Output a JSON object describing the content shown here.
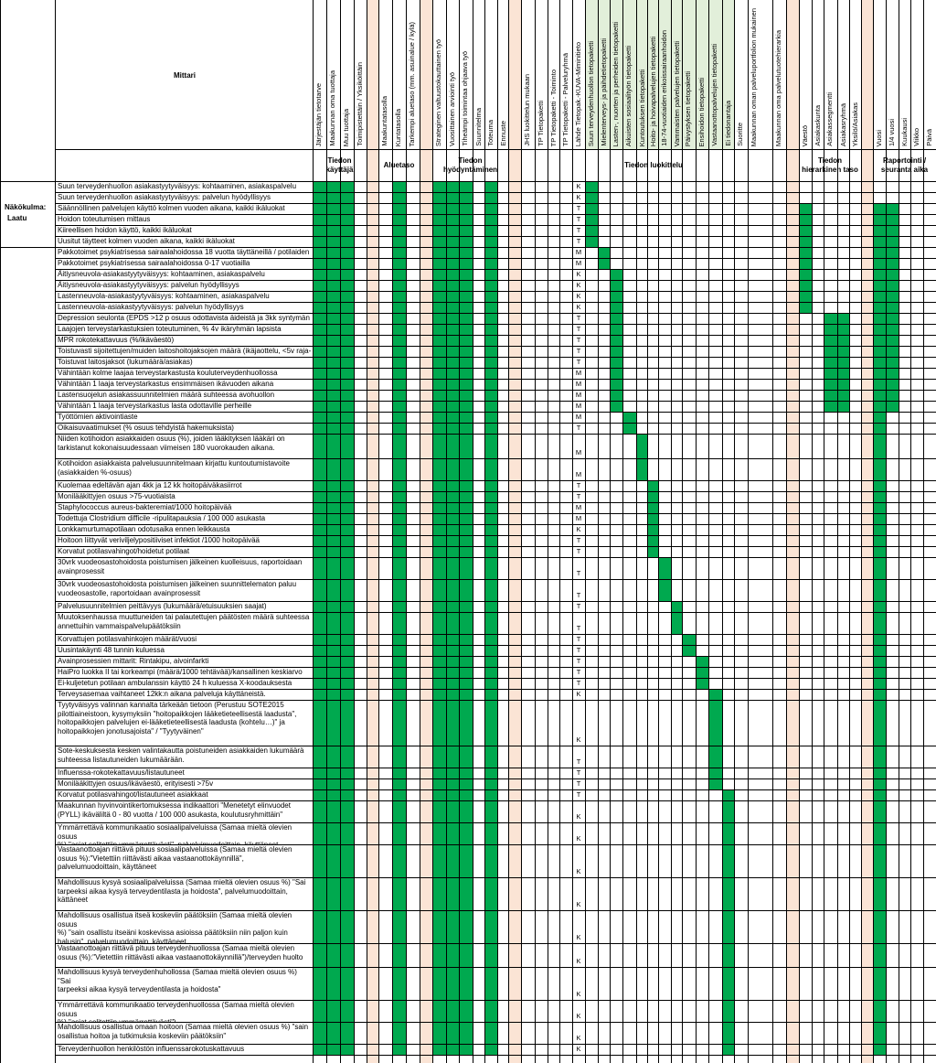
{
  "header": {
    "title": "Mittari",
    "perspective_label": "Näkökulma:",
    "perspective_value": "Laatu"
  },
  "columns": [
    "Järjestäjän tietotarve",
    "Maakunnan oma tuottaja",
    "Muu tuottaja",
    "Toimipistettäin / Yksiköittäin",
    "",
    "Maakuntatasolla",
    "Kuntatasolla",
    "Tarkempi aluetaso (mm. asuinalue / kylä)",
    "",
    "Strateginen valtuustokauttainen työ",
    "Vuosittainen arviointi työ",
    "Tiheämpi toimintaa ohjaava työ",
    "Suunnitelma",
    "Toteuma",
    "Ennuste",
    "",
    "JHS luokittelun mukaan",
    "TP Tietopaketti",
    "TP Tietopaketti - Toiminto",
    "TP Tietopaketti - Palveluryhmä",
    "Lähde Tietopak.-KUVA-Miminitieto",
    "Suun terveydenhuollon tietopaketti",
    "Mielenterveys- ja päihdetietopaketti",
    "Lasten-, nuorten ja perheiden tietopaketti",
    "Aikuisten sosiaalityön tietopaketti",
    "Kuntoutuksen tietopaketti",
    "Hoito- ja hoivapalvelujen tietopaketti",
    "18-74-vuotiaiden erikoissairaanhoidon",
    "Vammaisten palvelujen tietopaketti",
    "Päivystyksen tietopaketti",
    "Ensihoidon tietopaketti",
    "Vastaanottopalvelujen tietopaketti",
    "Ei tiedonantaja",
    "Suoritte",
    "Maakunnan oman palveluportfolion mukainen",
    "Maakunnan oma palvelutuotehierarkia",
    "",
    "Väestö",
    "Asiakaskunta",
    "Asiakassegmentti",
    "Asiakasryhmä",
    "Yksilö/Asiakas",
    "",
    "Vuosi",
    "1/4 vuosi",
    "Kuukausi",
    "Viikko",
    "Päivä"
  ],
  "groups": [
    {
      "label": "Tiedon\nkäyttäjä"
    },
    {
      "label": "Aluetaso"
    },
    {
      "label": "Tiedon\nhyödyntäminen"
    },
    {
      "label": "Tiedon luokittelu"
    },
    {
      "label": "Tiedon\nhierarkinen taso"
    },
    {
      "label": "Raportointi /\nseuranta aika"
    }
  ],
  "rows": [
    {
      "text": "Suun terveydenhuollon asiakastyytyväisyys: kohtaaminen, asiakaspalvelu",
      "code": "K"
    },
    {
      "text": "Suun terveydenhuollon asiakastyytyväisyys: palvelun hyödyllisyys",
      "code": "K"
    },
    {
      "text": "Säännöllinen palvelujen käyttö kolmen vuoden aikana, kaikki ikäluokat",
      "code": "T"
    },
    {
      "text": "Hoidon toteutumisen mittaus",
      "code": "T"
    },
    {
      "text": "Kiireellisen hoidon käyttö, kaikki ikäluokat",
      "code": "T"
    },
    {
      "text": "Uusitut täytteet kolmen vuoden aikana, kaikki ikäluokat",
      "code": "T"
    },
    {
      "text": "Pakkotoimet psykiatrisessa sairaalahoidossa 18 vuotta täyttäneillä / potilaiden lukumäärä",
      "code": "M"
    },
    {
      "text": "Pakkotoimet psykiatrisessa sairaalahoidossa 0-17 vuotiailla",
      "code": "M"
    },
    {
      "text": "Äitiysneuvola-asiakastyytyväisyys: kohtaaminen, asiakaspalvelu",
      "code": "K"
    },
    {
      "text": "Äitiysneuvola-asiakastyytyväisyys: palvelun hyödyllisyys",
      "code": "K"
    },
    {
      "text": "Lastenneuvola-asiakastyytyväisyys: kohtaaminen, asiakaspalvelu",
      "code": "K"
    },
    {
      "text": "Lastenneuvola-asiakastyytyväisyys: palvelun hyödyllisyys",
      "code": "K"
    },
    {
      "text": "Depression seulonta (EPDS >12 p osuus odottavista äideistä ja 3kk syntymän jälkeen)",
      "code": "T"
    },
    {
      "text": "Laajojen terveystarkastuksien toteutuminen, % 4v ikäryhmän lapsista",
      "code": "T"
    },
    {
      "text": "MPR rokotekattavuus (%/ikäväestö)",
      "code": "T"
    },
    {
      "text": "Toistuvasti sijoitettujen/muiden laitoshoitojaksojen määrä (ikäjaottelu, <5v raja-arvo >3 huostaanottoa)",
      "code": "T"
    },
    {
      "text": "Toistuvat laitosjaksot (lukumäärä/asiakas)",
      "code": "T"
    },
    {
      "text": "Vähintään kolme laajaa terveystarkastusta kouluterveydenhuollossa peruskoulun aikana",
      "code": "M"
    },
    {
      "text": "Vähintään 1 laaja terveystarkastus ensimmäisen ikävuoden aikana",
      "code": "M"
    },
    {
      "text": "Lastensuojelun asiakassuunnitelmien määrä suhteessa avohuollon asiakkuuksiin 0-17 v",
      "code": "M"
    },
    {
      "text": "Vähintään 1 laaja terveystarkastus lasta odottaville perheille",
      "code": "M"
    },
    {
      "text": "Työttömien aktivointiaste",
      "code": "M"
    },
    {
      "text": "Oikaisuvaatimukset (% osuus tehdyistä hakemuksista)",
      "code": "T"
    },
    {
      "text": "Niiden kotihoidon asiakkaiden osuus (%), joiden lääkityksen lääkäri on\ntarkistanut kokonaisuudessaan viimeisen 180 vuorokauden aikana.",
      "code": "M"
    },
    {
      "text": "Kotihoidon asiakkaista palvelusuunnitelmaan kirjattu kuntoutumistavoite\n(asiakkaiden %-osuus)",
      "code": "M"
    },
    {
      "text": "Kuolemaa edeltävän ajan 4kk ja 12 kk hoitopäiväkasiirrot",
      "code": "T"
    },
    {
      "text": "Monilääkittyjen osuus >75-vuotiaista",
      "code": "T"
    },
    {
      "text": "Staphylococcus aureus-bakteremiat/1000 hoitopäivää",
      "code": "M"
    },
    {
      "text": "Todettuja Clostridium difficile -ripulitapauksia / 100 000 asukasta",
      "code": "M"
    },
    {
      "text": "Lonkkamurtumapotilaan odotusaika ennen leikkausta",
      "code": "K"
    },
    {
      "text": "Hoitoon liittyvät veriviljelypositiiviset infektiot /1000 hoitopäivää",
      "code": "T"
    },
    {
      "text": "Korvatut potilasvahingot/hoidetut potilaat",
      "code": "T"
    },
    {
      "text": "30vrk vuodeosastohoidosta poistumisen jälkeinen kuolleisuus, raportoidaan\navainprosessit",
      "code": "T"
    },
    {
      "text": "30vrk vuodeosastohoidosta poistumisen jälkeinen suunnittelematon paluu\nvuodeosastolle, raportoidaan avainprosessit",
      "code": "T"
    },
    {
      "text": "Palvelusuunnitelmien peittävyys (lukumäärä/etuisuuksien saajat)",
      "code": "T"
    },
    {
      "text": "Muutoksenhaussa muuttuneiden tai palautettujen päätösten määrä suhteessa\nannettuihin vammaispalvelupäätöksiin",
      "code": "T"
    },
    {
      "text": "Korvattujen potilasvahinkojen määrät/vuosi",
      "code": "T"
    },
    {
      "text": "Uusintakäynti 48 tunnin kuluessa",
      "code": "T"
    },
    {
      "text": "Avainprosessien mittarit: Rintakipu, aivoinfarkti",
      "code": "T"
    },
    {
      "text": "HaiPro luokka II tai korkeampi (määrä/1000 tehtävää)/kansallinen keskiarvo",
      "code": "T"
    },
    {
      "text": "Ei-kuljetetun potilaan ambulanssin käyttö 24 h kuluessa X-koodauksesta",
      "code": "T"
    },
    {
      "text": "Terveysasemaa vaihtaneet 12kk:n aikana palveluja käyttäneistä.",
      "code": "K"
    },
    {
      "text": "Tyytyväisyys valinnan kannalta tärkeään tietoon (Perustuu SOTE2015\npilottiaineistoon, kysymyksiin \"hoitopaikkojen lääketieteellisestä laadusta\",\nhoitopaikkojen palvelujen ei-lääketieteellisestä laadusta (kohtelu…)\" ja\nhoitopaikkojen jonotusajoista\" / \"Tyytyväinen\"",
      "code": "K"
    },
    {
      "text": "Sote-keskuksesta kesken valintakautta poistuneiden asiakkaiden lukumäärä\nsuhteessa listautuneiden lukumäärään.",
      "code": "T"
    },
    {
      "text": "Influenssa-rokotekattavuus/listautuneet",
      "code": "T"
    },
    {
      "text": "Monilääkittyjen osuus/ikäväestö, erityisesti >75v",
      "code": "T"
    },
    {
      "text": "Korvatut potilasvahingot/listautuneet asiakkaat",
      "code": "T"
    },
    {
      "text": "Maakunnan hyvinvointikertomuksessa indikaattori \"Menetetyt elinvuodet\n(PYLL) ikäväliltä 0 - 80 vuotta / 100 000 asukasta, koulutusryhmittäin\"",
      "code": "K"
    },
    {
      "text": "Ymmärrettävä kommunikaatio sosiaalipalveluissa (Samaa mieltä olevien osuus\n%) \"asiat selitettiin ymmärrettävästi\", palveluimuodoittain, käyttäneet",
      "code": "K"
    },
    {
      "text": "Vastaanottoajan riittävä pituus sosiaalipalveluissa (Samaa mieltä olevien\nosuus %):\"Vietettiin riittävästi aikaa vastaanottokäynnillä\",\npalvelumuodoittain, käyttäneet",
      "code": "K"
    },
    {
      "text": "Mahdollisuus kysyä sosiaalipalveluissa (Samaa mieltä olevien osuus %) \"Sai\ntarpeeksi aikaa kysyä terveydentilasta ja hoidosta\", palvelumuodoittain,\nkättäneet",
      "code": "K"
    },
    {
      "text": "Mahdollisuus osallistua itseä koskeviin päätöksiin (Samaa mieltä olevien osuus\n%) \"sain osallistu itseäni koskevissa asioissa päätöksiin niin paljon kuin\nhalusin\", palvelumuodoittain, käyttäneet",
      "code": "K"
    },
    {
      "text": "Vastaanottoajan riittävä pituus terveydenhuollossa (Samaa mieltä olevien\nosuus (%):\"Vietettiin riittävästi aikaa vastaanottokäynnillä\")/terveyden huolto",
      "code": "K"
    },
    {
      "text": "Mahdollisuus kysyä terveydenhuhollossa (Samaa mieltä olevien osuus %) \"Sai\ntarpeeksi aikaa kysyä terveydentilasta ja hoidosta\"",
      "code": "K"
    },
    {
      "text": "Ymmärrettävä kommunikaatio terveydenhuollossa (Samaa mieltä olevien osuus\n%) \"asiat selitettiin ymmärrettävästi\")",
      "code": "K"
    },
    {
      "text": "Mahdollisuus osallistua omaan hoitoon (Samaa mieltä olevien osuus %) \"sain\nosallistua hoitoa ja tutkimuksia koskeviin päätöksiin\"",
      "code": "K"
    },
    {
      "text": "Terveydenhuollon henkilöstön influenssarokotuskattavuus",
      "code": "K"
    }
  ],
  "colors": {
    "accent_green": "#00a94f",
    "separator_peach": "#fbe4d5",
    "light_green": "#e2efda"
  }
}
